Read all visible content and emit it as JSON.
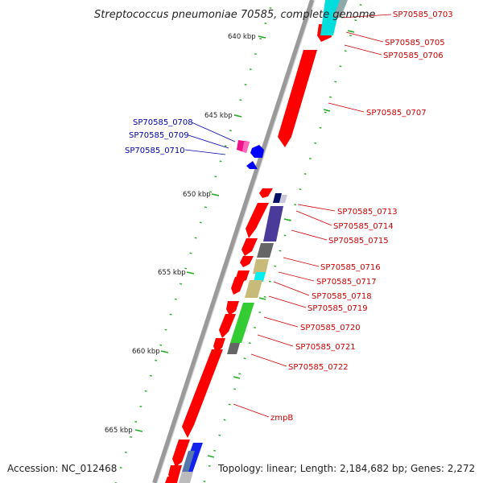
{
  "title": "Streptococcus pneumoniae 70585, complete genome",
  "footer": {
    "accession": "Accession: NC_012468",
    "summary": "Topology: linear; Length: 2,184,682 bp; Genes: 2,272"
  },
  "colors": {
    "forward_label": "#cc0000",
    "reverse_label": "#0000aa",
    "forward_gene": "#ff0000",
    "reverse_gene": "#0000ff",
    "backbone": "#8a8a8a",
    "tick": "#22aa22"
  },
  "kbp_ticks": [
    {
      "label": "640 kbp",
      "kbp": 640
    },
    {
      "label": "645 kbp",
      "kbp": 645
    },
    {
      "label": "650 kbp",
      "kbp": 650
    },
    {
      "label": "655 kbp",
      "kbp": 655
    },
    {
      "label": "660 kbp",
      "kbp": 660
    },
    {
      "label": "665 kbp",
      "kbp": 665
    }
  ],
  "forward_labels": [
    {
      "id": "sp0703",
      "text": "SP70585_0703"
    },
    {
      "id": "sp0705",
      "text": "SP70585_0705"
    },
    {
      "id": "sp0706",
      "text": "SP70585_0706"
    },
    {
      "id": "sp0707",
      "text": "SP70585_0707"
    },
    {
      "id": "sp0713",
      "text": "SP70585_0713"
    },
    {
      "id": "sp0714",
      "text": "SP70585_0714"
    },
    {
      "id": "sp0715",
      "text": "SP70585_0715"
    },
    {
      "id": "sp0716",
      "text": "SP70585_0716"
    },
    {
      "id": "sp0717",
      "text": "SP70585_0717"
    },
    {
      "id": "sp0718",
      "text": "SP70585_0718"
    },
    {
      "id": "sp0719",
      "text": "SP70585_0719"
    },
    {
      "id": "sp0720",
      "text": "SP70585_0720"
    },
    {
      "id": "sp0721",
      "text": "SP70585_0721"
    },
    {
      "id": "sp0722",
      "text": "SP70585_0722"
    },
    {
      "id": "zmpb",
      "text": "zmpB"
    }
  ],
  "reverse_labels": [
    {
      "id": "sp0708",
      "text": "SP70585_0708"
    },
    {
      "id": "sp0709",
      "text": "SP70585_0709"
    },
    {
      "id": "sp0710",
      "text": "SP70585_0710"
    }
  ]
}
